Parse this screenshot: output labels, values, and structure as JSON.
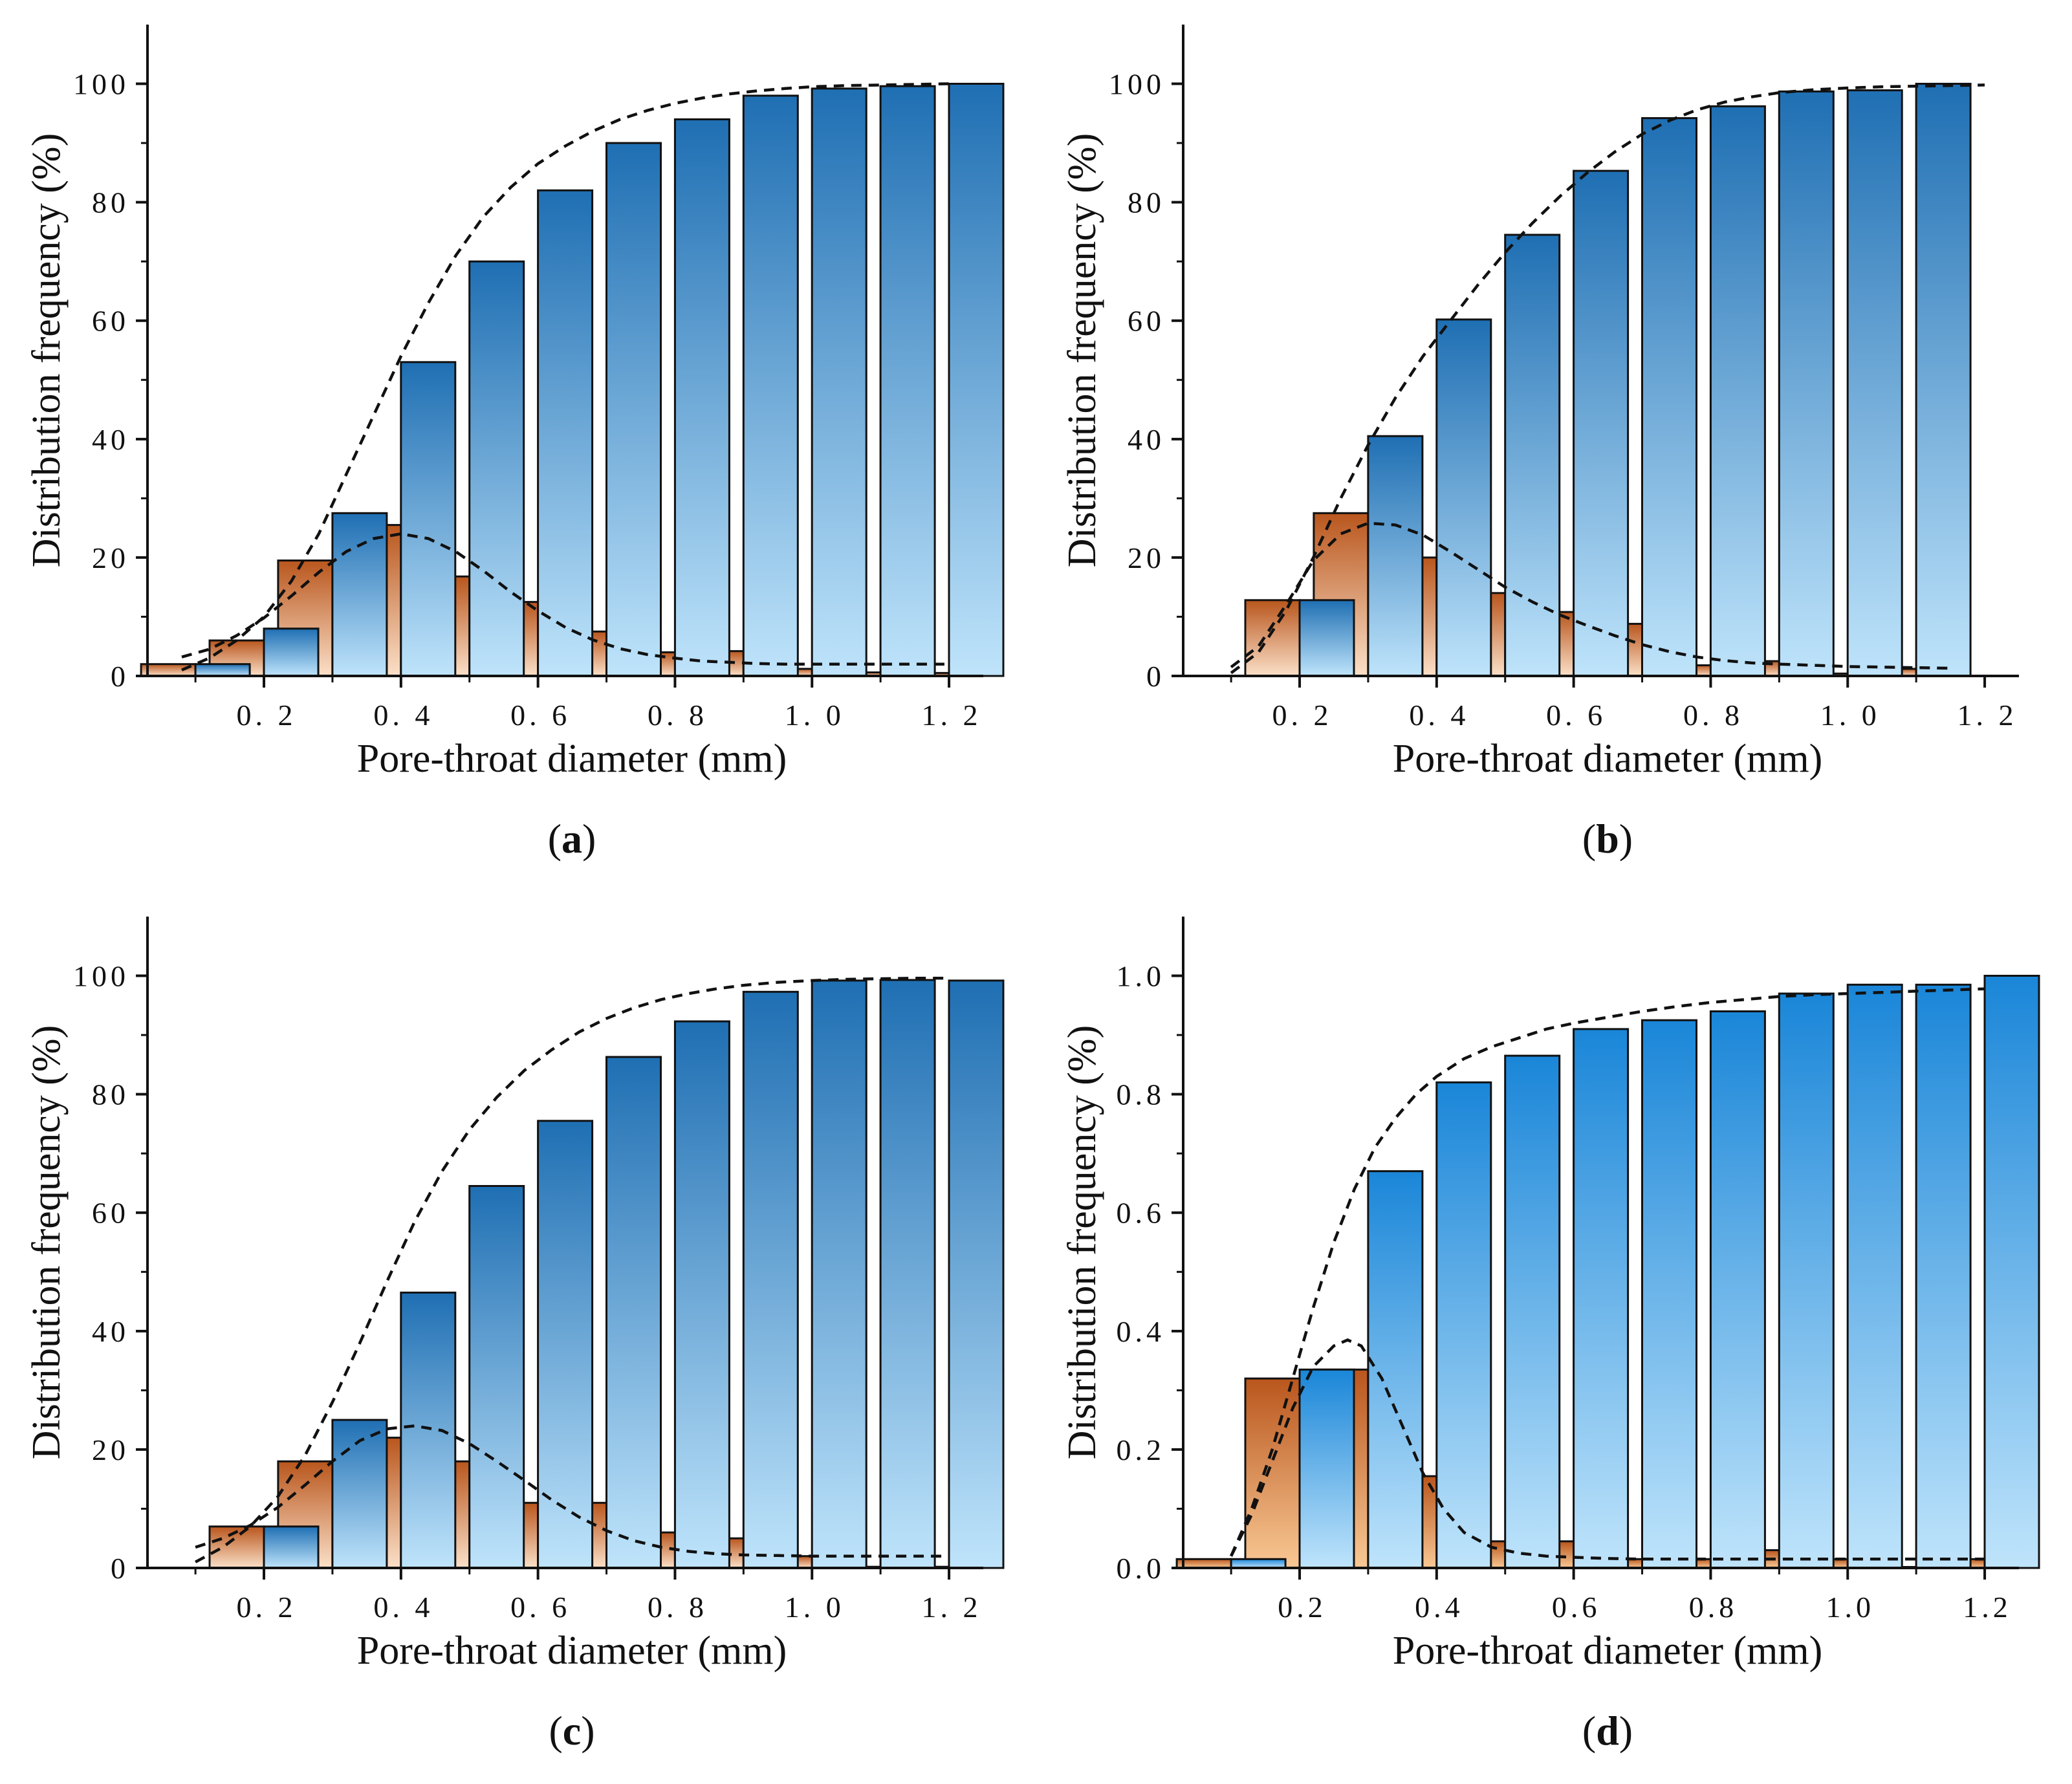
{
  "chart_data": [
    {
      "type": "bar",
      "panel": "a",
      "caption": {
        "open": "(",
        "letter": "a",
        "close": ")"
      },
      "xlabel": "Pore-throat diameter (mm)",
      "ylabel": "Distribution frequency (%)",
      "ylim": [
        0,
        110
      ],
      "xlim": [
        0.03,
        1.25
      ],
      "yticks": [
        0,
        20,
        40,
        60,
        80,
        100
      ],
      "ytick_labels": [
        "0",
        "20",
        "40",
        "60",
        "80",
        "100"
      ],
      "xticks": [
        0.2,
        0.4,
        0.6,
        0.8,
        1.0,
        1.2
      ],
      "xtick_labels": [
        "0. 2",
        "0. 4",
        "0. 6",
        "0. 8",
        "1. 0",
        "1. 2"
      ],
      "x": [
        0.1,
        0.2,
        0.3,
        0.4,
        0.5,
        0.6,
        0.7,
        0.8,
        0.9,
        1.0,
        1.1,
        1.2
      ],
      "series": [
        {
          "name": "distribution",
          "color_top": "#b9561d",
          "color_bottom": "#fbe0c8",
          "values": [
            2,
            6,
            19.5,
            25.5,
            16.8,
            12.5,
            7.5,
            4,
            4.2,
            1.2,
            0.6,
            0.5
          ]
        },
        {
          "name": "cumulative",
          "color_top": "#1f6fb3",
          "color_bottom": "#bfe4fb",
          "values": [
            2,
            8,
            27.5,
            53,
            70,
            82,
            90,
            94,
            98,
            99.2,
            99.6,
            100
          ]
        }
      ],
      "fit_curves": [
        {
          "name": "distribution fit",
          "style": "dashed",
          "x": [
            0.08,
            0.12,
            0.16,
            0.2,
            0.24,
            0.28,
            0.32,
            0.36,
            0.4,
            0.44,
            0.48,
            0.52,
            0.56,
            0.6,
            0.64,
            0.68,
            0.72,
            0.76,
            0.8,
            0.84,
            0.88,
            0.92,
            0.96,
            1.0,
            1.05,
            1.1,
            1.15,
            1.2
          ],
          "y": [
            3.2,
            4.5,
            6.8,
            9.8,
            13.5,
            17.5,
            21,
            23.2,
            24,
            23.2,
            21,
            17.8,
            14.2,
            11,
            8.2,
            6.1,
            4.6,
            3.6,
            3,
            2.5,
            2.3,
            2.1,
            2,
            2,
            2,
            2,
            2,
            2
          ]
        },
        {
          "name": "cumulative fit",
          "style": "dashed",
          "x": [
            0.08,
            0.12,
            0.16,
            0.2,
            0.24,
            0.28,
            0.32,
            0.36,
            0.4,
            0.44,
            0.48,
            0.52,
            0.56,
            0.6,
            0.64,
            0.68,
            0.72,
            0.76,
            0.8,
            0.84,
            0.88,
            0.92,
            0.96,
            1.0,
            1.05,
            1.1,
            1.15,
            1.2
          ],
          "y": [
            1,
            3,
            6,
            10,
            16,
            24,
            34,
            44,
            54,
            63,
            71,
            77.5,
            82.5,
            86.5,
            89.5,
            92,
            94,
            95.5,
            96.7,
            97.6,
            98.3,
            98.8,
            99.2,
            99.5,
            99.7,
            99.8,
            99.9,
            100
          ]
        }
      ]
    },
    {
      "type": "bar",
      "panel": "b",
      "caption": {
        "open": "(",
        "letter": "b",
        "close": ")"
      },
      "xlabel": "Pore-throat diameter (mm)",
      "ylabel": "Distribution frequency (%)",
      "ylim": [
        0,
        110
      ],
      "xlim": [
        0.03,
        1.25
      ],
      "yticks": [
        0,
        20,
        40,
        60,
        80,
        100
      ],
      "ytick_labels": [
        "0",
        "20",
        "40",
        "60",
        "80",
        "100"
      ],
      "xticks": [
        0.2,
        0.4,
        0.6,
        0.8,
        1.0,
        1.2
      ],
      "xtick_labels": [
        "0. 2",
        "0. 4",
        "0. 6",
        "0. 8",
        "1. 0",
        "1. 2"
      ],
      "x": [
        0.2,
        0.3,
        0.4,
        0.5,
        0.6,
        0.7,
        0.8,
        0.9,
        1.0,
        1.1
      ],
      "series": [
        {
          "name": "distribution",
          "color_top": "#b9561d",
          "color_bottom": "#fbe0c8",
          "values": [
            12.8,
            27.5,
            20,
            14,
            10.8,
            8.8,
            1.8,
            2.5,
            0.4,
            1.2
          ]
        },
        {
          "name": "cumulative",
          "color_top": "#1f6fb3",
          "color_bottom": "#bfe4fb",
          "values": [
            12.8,
            40.5,
            60.2,
            74.5,
            85.3,
            94.2,
            96.2,
            98.7,
            98.9,
            100
          ]
        }
      ],
      "fit_curves": [
        {
          "name": "distribution fit",
          "style": "dashed",
          "x": [
            0.1,
            0.14,
            0.18,
            0.22,
            0.26,
            0.3,
            0.34,
            0.38,
            0.42,
            0.46,
            0.5,
            0.54,
            0.58,
            0.62,
            0.66,
            0.7,
            0.74,
            0.78,
            0.82,
            0.86,
            0.9,
            0.95,
            1.0,
            1.05,
            1.1,
            1.15
          ],
          "y": [
            1.5,
            5,
            12,
            19.5,
            24,
            25.8,
            25.5,
            23.8,
            21,
            18,
            15,
            12.5,
            10.3,
            8.5,
            6.8,
            5.3,
            4.1,
            3.2,
            2.6,
            2.2,
            2,
            1.8,
            1.6,
            1.5,
            1.4,
            1.3
          ]
        },
        {
          "name": "cumulative fit",
          "style": "dashed",
          "x": [
            0.1,
            0.14,
            0.18,
            0.22,
            0.26,
            0.3,
            0.34,
            0.38,
            0.42,
            0.46,
            0.5,
            0.54,
            0.58,
            0.62,
            0.66,
            0.7,
            0.74,
            0.78,
            0.82,
            0.86,
            0.9,
            0.95,
            1.0,
            1.05,
            1.1,
            1.15,
            1.2
          ],
          "y": [
            0.5,
            4,
            11,
            20,
            30,
            39,
            47,
            54,
            60,
            66,
            71.5,
            76.5,
            81,
            85,
            88.5,
            91.5,
            93.8,
            95.6,
            96.9,
            97.8,
            98.5,
            99,
            99.3,
            99.5,
            99.6,
            99.7,
            99.8
          ]
        }
      ]
    },
    {
      "type": "bar",
      "panel": "c",
      "caption": {
        "open": "(",
        "letter": "c",
        "close": ")"
      },
      "xlabel": "Pore-throat diameter (mm)",
      "ylabel": "Distribution frequency (%)",
      "ylim": [
        0,
        110
      ],
      "xlim": [
        0.03,
        1.25
      ],
      "yticks": [
        0,
        20,
        40,
        60,
        80,
        100
      ],
      "ytick_labels": [
        "0",
        "20",
        "40",
        "60",
        "80",
        "100"
      ],
      "xticks": [
        0.2,
        0.4,
        0.6,
        0.8,
        1.0,
        1.2
      ],
      "xtick_labels": [
        "0. 2",
        "0. 4",
        "0. 6",
        "0. 8",
        "1. 0",
        "1. 2"
      ],
      "x": [
        0.2,
        0.3,
        0.4,
        0.5,
        0.6,
        0.7,
        0.8,
        0.9,
        1.0,
        1.1,
        1.2
      ],
      "series": [
        {
          "name": "distribution",
          "color_top": "#b9561d",
          "color_bottom": "#fbe0c8",
          "values": [
            7,
            18,
            22,
            18,
            11,
            11,
            6,
            5,
            2,
            0.2,
            0.2
          ]
        },
        {
          "name": "cumulative",
          "color_top": "#1f6fb3",
          "color_bottom": "#bfe4fb",
          "values": [
            7,
            25,
            46.5,
            64.5,
            75.5,
            86.3,
            92.3,
            97.3,
            99.2,
            99.3,
            99.2
          ]
        }
      ],
      "fit_curves": [
        {
          "name": "distribution fit",
          "style": "dashed",
          "x": [
            0.1,
            0.14,
            0.18,
            0.22,
            0.26,
            0.3,
            0.34,
            0.38,
            0.42,
            0.46,
            0.5,
            0.54,
            0.58,
            0.62,
            0.66,
            0.7,
            0.74,
            0.78,
            0.82,
            0.86,
            0.9,
            0.95,
            1.0,
            1.05,
            1.1,
            1.15,
            1.2
          ],
          "y": [
            3.5,
            5,
            7.2,
            10.2,
            14,
            18,
            21.5,
            23.5,
            24,
            23.2,
            21,
            18,
            14.8,
            11.5,
            8.6,
            6.3,
            4.6,
            3.5,
            2.8,
            2.4,
            2.2,
            2.1,
            2,
            2,
            2,
            2,
            2
          ]
        },
        {
          "name": "cumulative fit",
          "style": "dashed",
          "x": [
            0.1,
            0.14,
            0.18,
            0.22,
            0.26,
            0.3,
            0.34,
            0.38,
            0.42,
            0.46,
            0.5,
            0.54,
            0.58,
            0.62,
            0.66,
            0.7,
            0.74,
            0.78,
            0.82,
            0.86,
            0.9,
            0.95,
            1.0,
            1.05,
            1.1,
            1.15,
            1.2
          ],
          "y": [
            1,
            3.5,
            7,
            12,
            19,
            28,
            38,
            48.5,
            58.5,
            67,
            74,
            79.5,
            84,
            87.5,
            90.5,
            92.8,
            94.6,
            96,
            97,
            97.8,
            98.4,
            98.9,
            99.2,
            99.4,
            99.5,
            99.6,
            99.6
          ]
        }
      ]
    },
    {
      "type": "bar",
      "panel": "d",
      "caption": {
        "open": "(",
        "letter": "d",
        "close": ")"
      },
      "xlabel": "Pore-throat diameter (mm)",
      "ylabel": "Distribution frequency (%)",
      "ylim": [
        0,
        1.1
      ],
      "xlim": [
        0.03,
        1.25
      ],
      "yticks": [
        0,
        0.2,
        0.4,
        0.6,
        0.8,
        1.0
      ],
      "ytick_labels": [
        "0.0",
        "0.2",
        "0.4",
        "0.6",
        "0.8",
        "1.0"
      ],
      "xticks": [
        0.2,
        0.4,
        0.6,
        0.8,
        1.0,
        1.2
      ],
      "xtick_labels": [
        "0.2",
        "0.4",
        "0.6",
        "0.8",
        "1.0",
        "1.2"
      ],
      "x": [
        0.1,
        0.2,
        0.3,
        0.4,
        0.5,
        0.6,
        0.7,
        0.8,
        0.9,
        1.0,
        1.1,
        1.2
      ],
      "series": [
        {
          "name": "distribution",
          "color_top": "#b9561d",
          "color_bottom": "#f9c894",
          "values": [
            0.015,
            0.32,
            0.335,
            0.155,
            0.045,
            0.045,
            0.015,
            0.015,
            0.03,
            0.015,
            0.001,
            0.015
          ]
        },
        {
          "name": "cumulative",
          "color_top": "#1a86d8",
          "color_bottom": "#bfe4fb",
          "values": [
            0.015,
            0.335,
            0.67,
            0.82,
            0.865,
            0.91,
            0.925,
            0.94,
            0.97,
            0.985,
            0.985,
            1.0
          ]
        }
      ],
      "fit_curves": [
        {
          "name": "distribution fit",
          "style": "dashed",
          "x": [
            0.1,
            0.13,
            0.16,
            0.19,
            0.22,
            0.25,
            0.27,
            0.29,
            0.32,
            0.35,
            0.38,
            0.41,
            0.44,
            0.48,
            0.52,
            0.56,
            0.6,
            0.65,
            0.7,
            0.75,
            0.8,
            0.85,
            0.9,
            0.95,
            1.0,
            1.05,
            1.1,
            1.15,
            1.2
          ],
          "y": [
            0.02,
            0.09,
            0.18,
            0.27,
            0.34,
            0.375,
            0.385,
            0.375,
            0.32,
            0.24,
            0.16,
            0.1,
            0.06,
            0.035,
            0.025,
            0.02,
            0.018,
            0.016,
            0.015,
            0.015,
            0.015,
            0.015,
            0.015,
            0.015,
            0.015,
            0.015,
            0.015,
            0.015,
            0.015
          ]
        },
        {
          "name": "cumulative fit",
          "style": "dashed",
          "x": [
            0.1,
            0.13,
            0.16,
            0.19,
            0.22,
            0.25,
            0.28,
            0.31,
            0.34,
            0.37,
            0.4,
            0.44,
            0.48,
            0.52,
            0.56,
            0.6,
            0.65,
            0.7,
            0.75,
            0.8,
            0.85,
            0.9,
            0.95,
            1.0,
            1.05,
            1.1,
            1.15,
            1.2
          ],
          "y": [
            0.02,
            0.1,
            0.2,
            0.32,
            0.44,
            0.55,
            0.64,
            0.71,
            0.76,
            0.8,
            0.83,
            0.86,
            0.88,
            0.895,
            0.91,
            0.92,
            0.93,
            0.94,
            0.948,
            0.955,
            0.96,
            0.965,
            0.968,
            0.97,
            0.972,
            0.974,
            0.976,
            0.978
          ]
        }
      ]
    }
  ]
}
